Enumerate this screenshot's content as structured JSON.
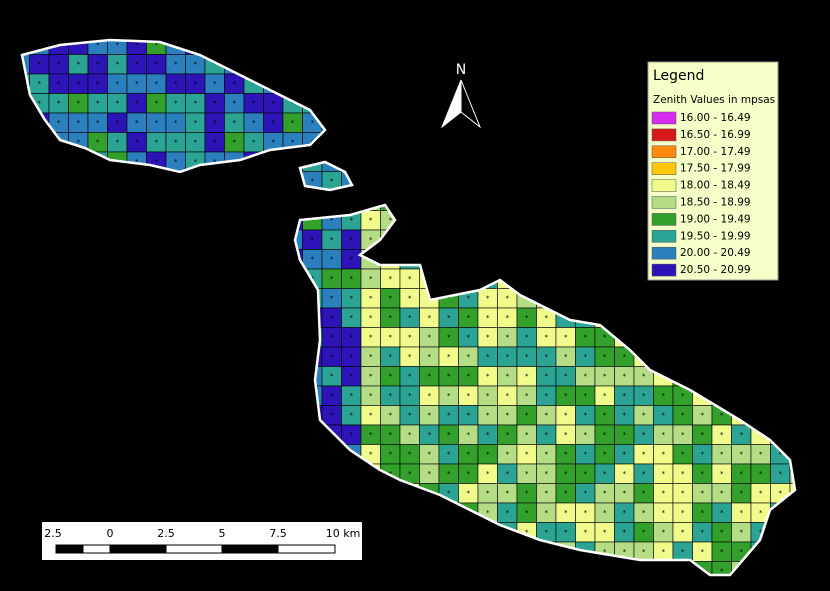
{
  "north_label": "N",
  "legend": {
    "title": "Legend",
    "subtitle": "Zenith Values in mpsas",
    "items": [
      {
        "label": "16.00 - 16.49",
        "color": "#d62cf0"
      },
      {
        "label": "16.50 - 16.99",
        "color": "#d7191c"
      },
      {
        "label": "17.00 - 17.49",
        "color": "#fd8a0c"
      },
      {
        "label": "17.50 - 17.99",
        "color": "#fec80c"
      },
      {
        "label": "18.00 - 18.49",
        "color": "#f1fb8c"
      },
      {
        "label": "18.50 - 18.99",
        "color": "#b5dd86"
      },
      {
        "label": "19.00 - 19.49",
        "color": "#33a02c"
      },
      {
        "label": "19.50 - 19.99",
        "color": "#2ca493"
      },
      {
        "label": "20.00 - 20.49",
        "color": "#2b7fbd"
      },
      {
        "label": "20.50 - 20.99",
        "color": "#2c14b6"
      }
    ]
  },
  "scale_bar": {
    "labels": [
      "2.5",
      "0",
      "2.5",
      "5",
      "7.5",
      "10 km"
    ]
  }
}
